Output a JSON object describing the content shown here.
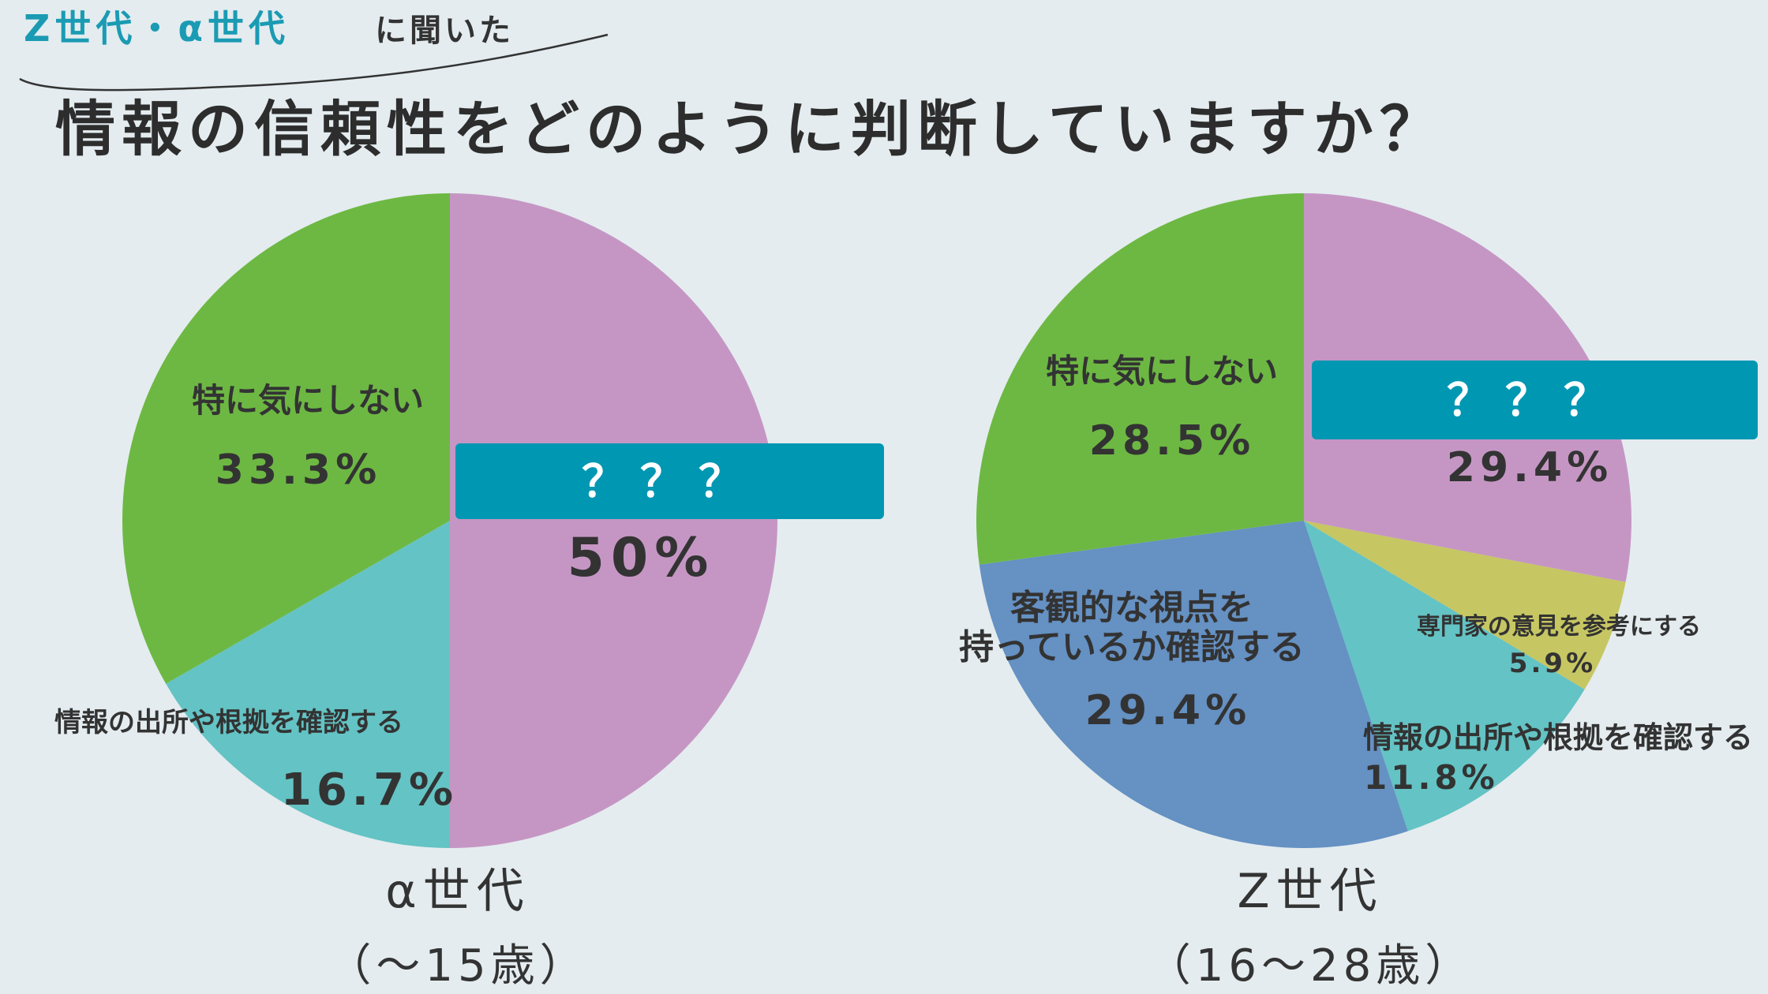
{
  "header": {
    "subtitle_generations": "Z世代・α世代",
    "subtitle_rest": "に聞いた",
    "title": "情報の信頼性をどのように判断していますか？"
  },
  "colors": {
    "pink": "#c596c4",
    "green": "#6db843",
    "teal": "#64c3c4",
    "blue": "#6591c3",
    "olive": "#c6c663",
    "banner": "#0097b2",
    "background": "#e4ecef"
  },
  "chart_data": [
    {
      "type": "pie",
      "group": "α世代",
      "age_range": "（〜15歳）",
      "hidden_label": "？？？",
      "slices": [
        {
          "label": "？？？",
          "value": 50,
          "display": "50%",
          "color": "#c596c4"
        },
        {
          "label": "情報の出所や根拠を確認する",
          "value": 16.7,
          "display": "16.7%",
          "color": "#64c3c4"
        },
        {
          "label": "特に気にしない",
          "value": 33.3,
          "display": "33.3%",
          "color": "#6db843"
        }
      ]
    },
    {
      "type": "pie",
      "group": "Z世代",
      "age_range": "（16〜28歳）",
      "hidden_label": "？？？",
      "slices": [
        {
          "label": "？？？",
          "value": 29.4,
          "display": "29.4%",
          "color": "#c596c4"
        },
        {
          "label": "専門家の意見を参考にする",
          "value": 5.9,
          "display": "5.9%",
          "color": "#c6c663"
        },
        {
          "label": "情報の出所や根拠を確認する",
          "value": 11.8,
          "display": "11.8%",
          "color": "#64c3c4"
        },
        {
          "label": "客観的な視点を持っているか確認する",
          "value": 29.4,
          "display": "29.4%",
          "color": "#6591c3"
        },
        {
          "label": "特に気にしない",
          "value": 28.5,
          "display": "28.5%",
          "color": "#6db843"
        }
      ]
    }
  ]
}
